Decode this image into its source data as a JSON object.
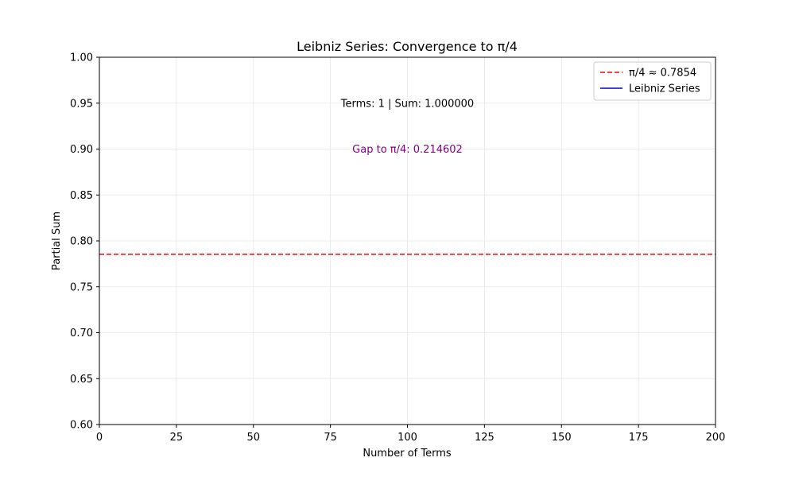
{
  "chart_data": {
    "type": "line",
    "title": "Leibniz Series: Convergence to π/4",
    "xlabel": "Number of Terms",
    "ylabel": "Partial Sum",
    "xlim": [
      0,
      200
    ],
    "ylim": [
      0.6,
      1.0
    ],
    "x_ticks": [
      0,
      25,
      50,
      75,
      100,
      125,
      150,
      175,
      200
    ],
    "x_tick_labels": [
      "0",
      "25",
      "50",
      "75",
      "100",
      "125",
      "150",
      "175",
      "200"
    ],
    "y_ticks": [
      0.6,
      0.65,
      0.7,
      0.75,
      0.8,
      0.85,
      0.9,
      0.95,
      1.0
    ],
    "y_tick_labels": [
      "0.60",
      "0.65",
      "0.70",
      "0.75",
      "0.80",
      "0.85",
      "0.90",
      "0.95",
      "1.00"
    ],
    "grid": true,
    "legend_position": "top-right",
    "series": [
      {
        "name": "π/4 ≈ 0.7854",
        "kind": "hline",
        "value": 0.7854,
        "style": "dashed",
        "color": "#ff0000"
      },
      {
        "name": "Leibniz Series",
        "kind": "line",
        "x": [
          1
        ],
        "y": [
          1.0
        ],
        "style": "solid",
        "color": "#0000cc"
      }
    ],
    "annotations": [
      {
        "text": "Terms: 1  |  Sum: 1.000000",
        "color": "#000000",
        "x": 100,
        "y": 0.95
      },
      {
        "text": "Gap to π/4: 0.214602",
        "color": "#800080",
        "x": 100,
        "y": 0.9
      }
    ]
  }
}
